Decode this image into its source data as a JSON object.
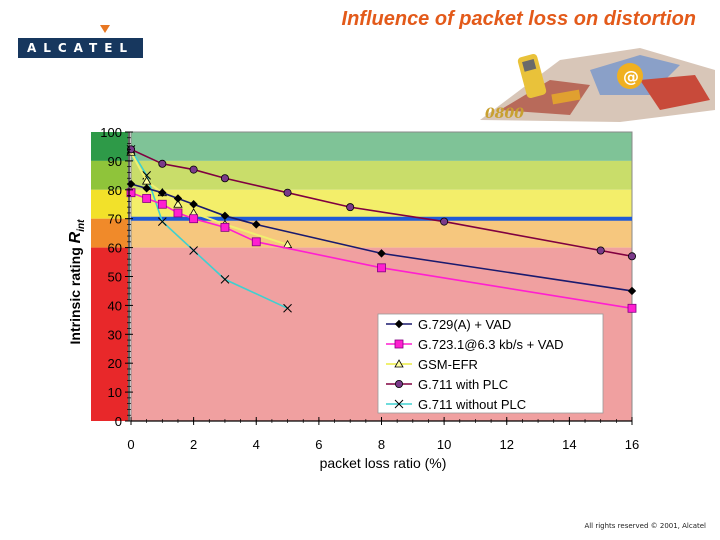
{
  "header": {
    "title": "Influence of packet loss on distortion",
    "logo_text": "ALCATEL"
  },
  "footer": {
    "text": "All rights reserved © 2001, Alcatel"
  },
  "colors": {
    "accent": "#e35a1a",
    "band_top": "#7fc397",
    "band_90": "#c9dd6a",
    "band_80": "#f3ee6a",
    "band_70": "#f6c77e",
    "band_low": "#f0a0a0",
    "threshold_line": "#1e5bd6",
    "plot_border": "#888888"
  },
  "chart_data": {
    "type": "line",
    "title": "Influence of packet loss on distortion",
    "xlabel": "packet loss ratio (%)",
    "ylabel_main": "Intrinsic rating ",
    "ylabel_sym": "R",
    "ylabel_sub": "int",
    "xlim": [
      0,
      16
    ],
    "ylim": [
      0,
      100
    ],
    "x_ticks": [
      0,
      2,
      4,
      6,
      8,
      10,
      12,
      14,
      16
    ],
    "y_ticks": [
      0,
      10,
      20,
      30,
      40,
      50,
      60,
      70,
      80,
      90,
      100
    ],
    "threshold": 70,
    "bands": [
      {
        "from": 90,
        "to": 100,
        "color": "#7fc397"
      },
      {
        "from": 80,
        "to": 90,
        "color": "#c9dd6a"
      },
      {
        "from": 70,
        "to": 80,
        "color": "#f3ee6a"
      },
      {
        "from": 60,
        "to": 70,
        "color": "#f6c77e"
      },
      {
        "from": 0,
        "to": 60,
        "color": "#f0a0a0"
      }
    ],
    "left_strip": [
      {
        "from": 90,
        "to": 100,
        "color": "#2e9a48"
      },
      {
        "from": 80,
        "to": 90,
        "color": "#8fc43a"
      },
      {
        "from": 70,
        "to": 80,
        "color": "#f2e12a"
      },
      {
        "from": 60,
        "to": 70,
        "color": "#f08a2a"
      },
      {
        "from": 0,
        "to": 60,
        "color": "#e8282a"
      }
    ],
    "legend_position": "bottom-right",
    "series": [
      {
        "name": "G.729(A) + VAD",
        "color": "#1a1a6e",
        "marker": "diamond",
        "x": [
          0,
          0.5,
          1,
          1.5,
          2,
          3,
          4,
          8,
          16
        ],
        "y": [
          82,
          80.5,
          79,
          77,
          75,
          71,
          68,
          58,
          45
        ]
      },
      {
        "name": "G.723.1@6.3 kb/s + VAD",
        "color": "#ff1fd0",
        "marker": "square",
        "x": [
          0,
          0.5,
          1,
          1.5,
          2,
          3,
          4,
          8,
          16
        ],
        "y": [
          79,
          77,
          75,
          72,
          70,
          67,
          62,
          53,
          39
        ]
      },
      {
        "name": "GSM-EFR",
        "color": "#f0f070",
        "marker": "triangle",
        "x": [
          0,
          0.5,
          1,
          1.5,
          2,
          3,
          5
        ],
        "y": [
          93,
          83,
          79,
          75,
          72,
          68,
          61
        ]
      },
      {
        "name": "G.711 with PLC",
        "color": "#800040",
        "marker": "circle",
        "x": [
          0,
          1,
          2,
          3,
          5,
          7,
          10,
          15,
          16
        ],
        "y": [
          94,
          89,
          87,
          84,
          79,
          74,
          69,
          59,
          57
        ]
      },
      {
        "name": "G.711 without PLC",
        "color": "#3fd0d0",
        "marker": "x",
        "x": [
          0,
          0.5,
          1,
          2,
          3,
          5
        ],
        "y": [
          94,
          85,
          69,
          59,
          49,
          39
        ]
      }
    ]
  }
}
